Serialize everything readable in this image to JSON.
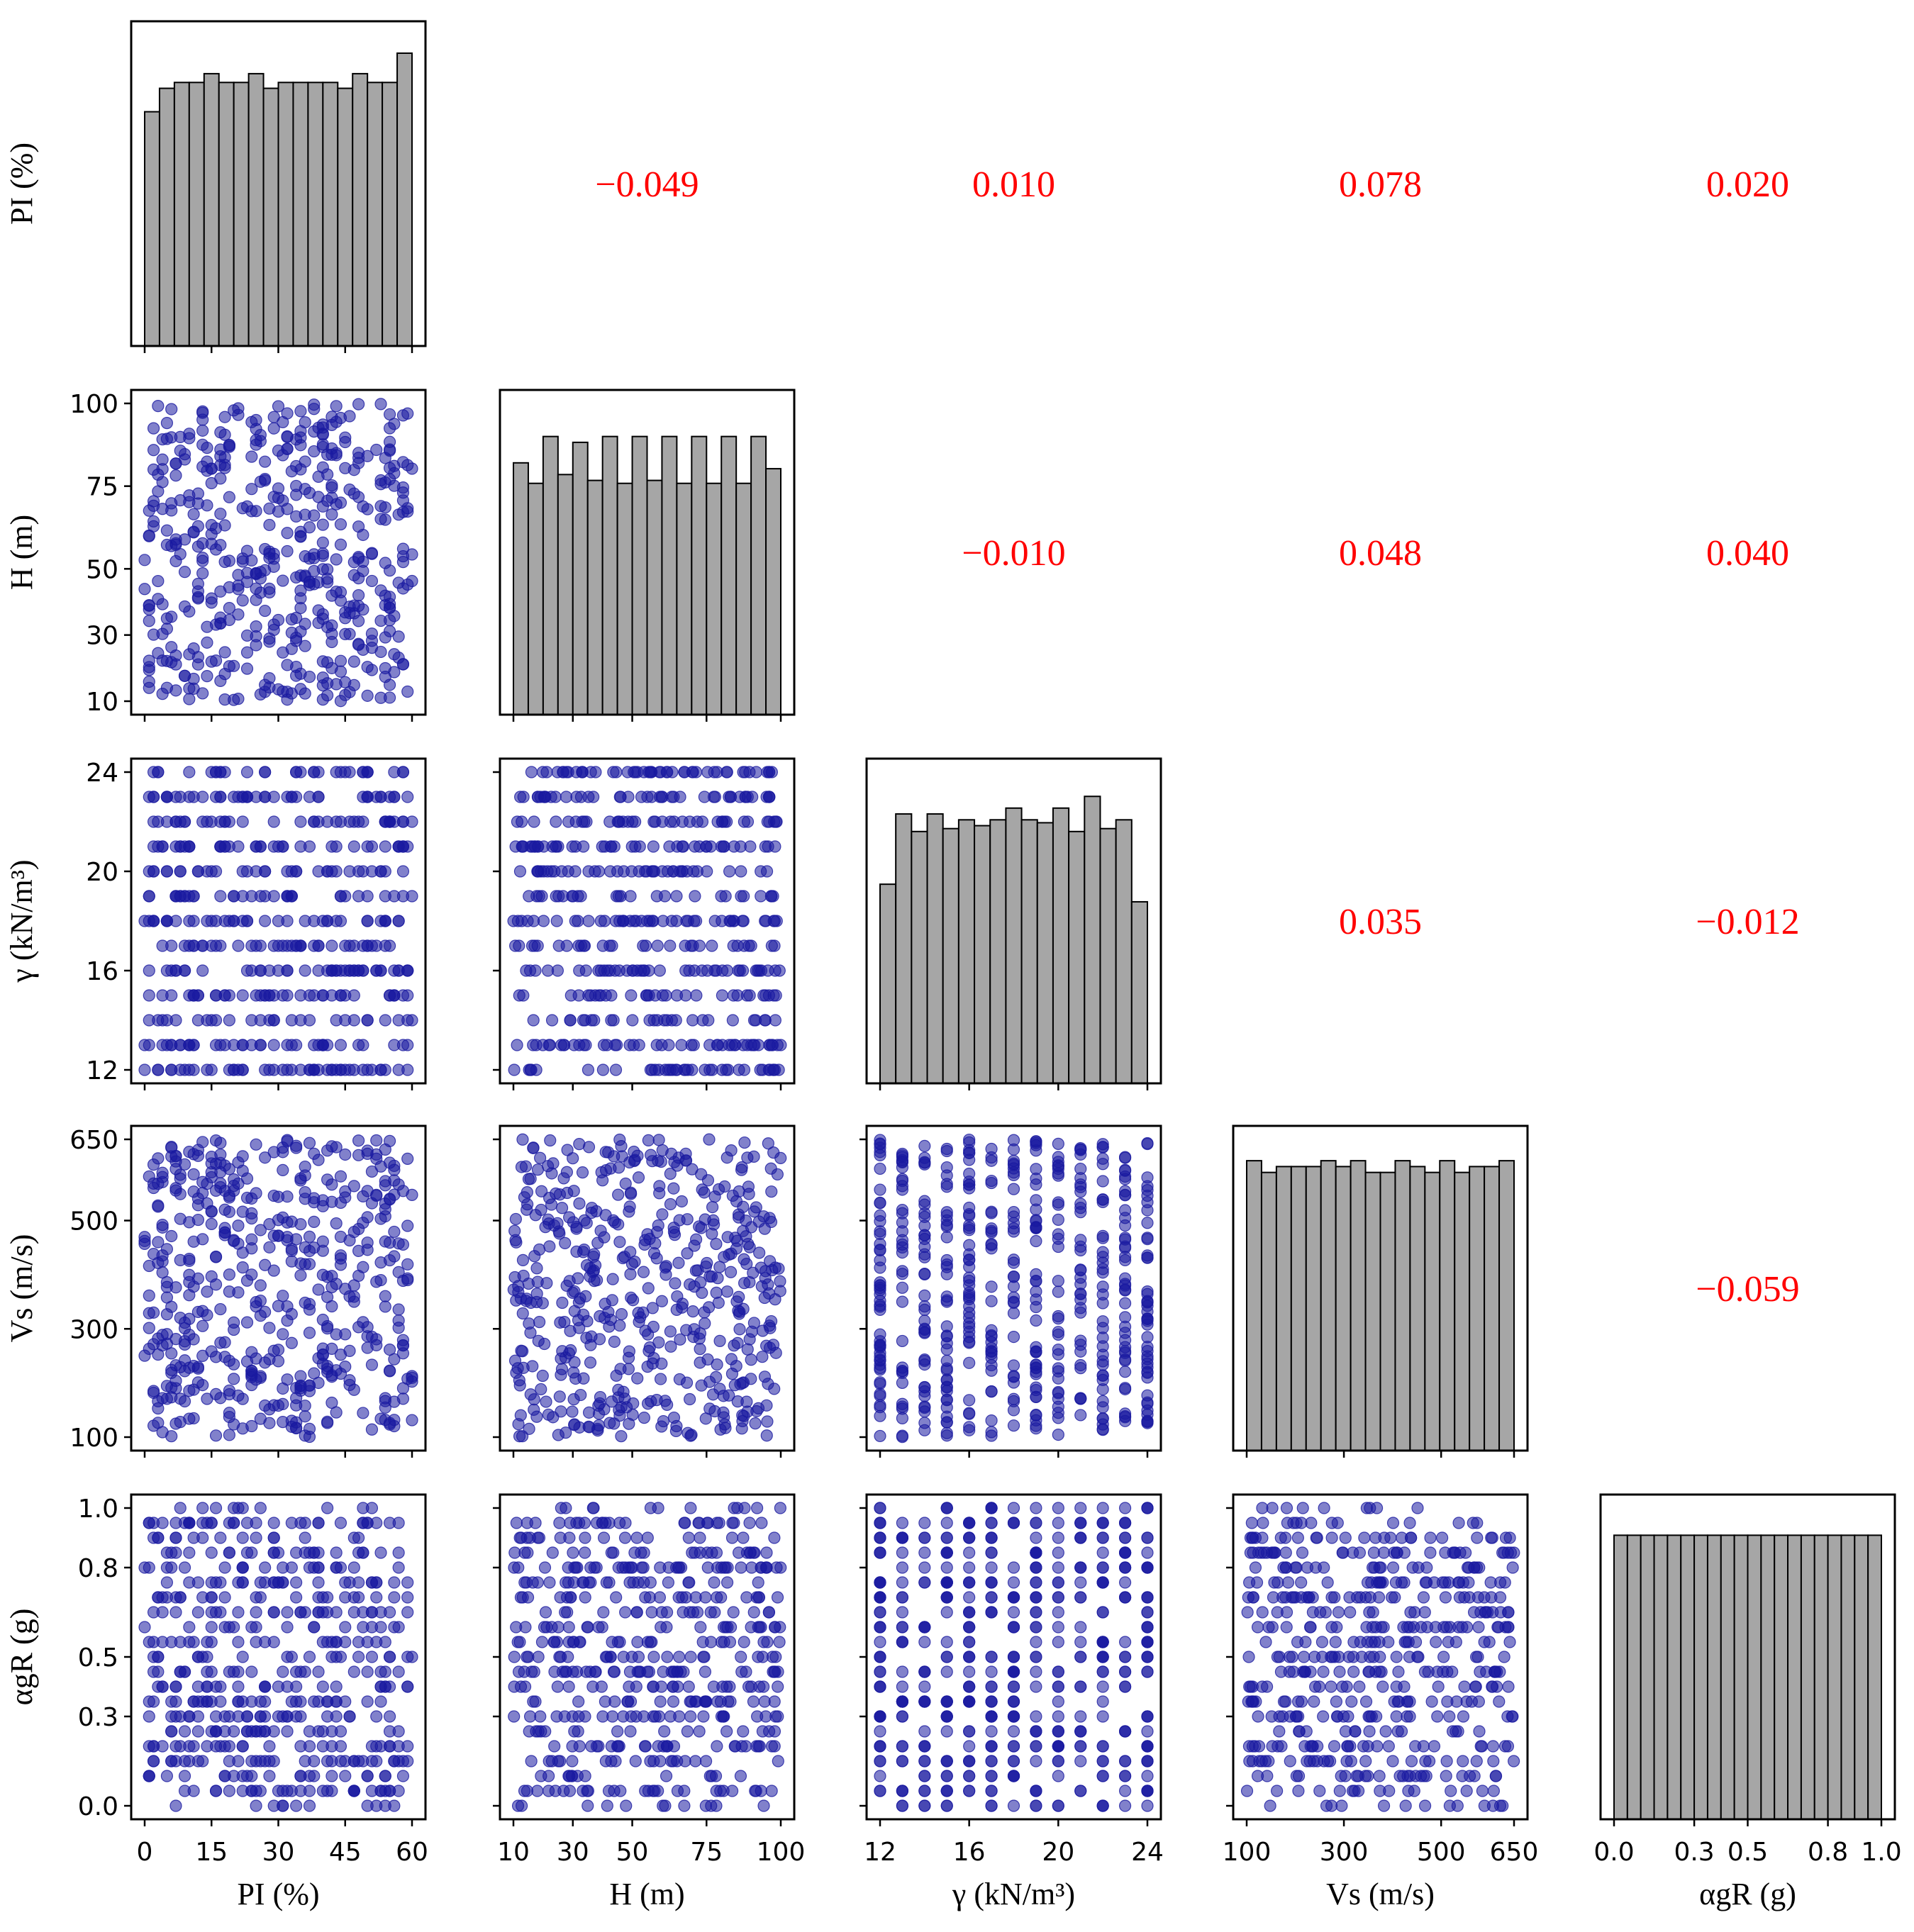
{
  "chart_data": {
    "type": "scatter-matrix",
    "variables": [
      {
        "key": "PI",
        "label": "PI (%)",
        "range": [
          0,
          60
        ],
        "ticks": [
          0,
          15,
          30,
          45,
          60
        ],
        "xticks": [
          "0",
          "15",
          "30",
          "45",
          "60"
        ],
        "yticks": [],
        "hist": [
          0.8,
          0.88,
          0.9,
          0.9,
          0.93,
          0.9,
          0.9,
          0.93,
          0.88,
          0.9,
          0.9,
          0.9,
          0.9,
          0.88,
          0.93,
          0.9,
          0.9,
          1.0
        ]
      },
      {
        "key": "H",
        "label": "H (m)",
        "range": [
          10,
          100
        ],
        "ticks": [
          10,
          30,
          50,
          75,
          100
        ],
        "xticks": [
          "10",
          "30",
          "50",
          "75",
          "100"
        ],
        "yticks": [
          "10",
          "30",
          "50",
          "75",
          "100"
        ],
        "hist": [
          0.86,
          0.79,
          0.95,
          0.82,
          0.93,
          0.8,
          0.95,
          0.79,
          0.95,
          0.8,
          0.95,
          0.79,
          0.95,
          0.79,
          0.95,
          0.79,
          0.95,
          0.84
        ]
      },
      {
        "key": "gamma",
        "label": "γ (kN/m³)",
        "range": [
          12,
          24
        ],
        "ticks": [
          12,
          16,
          20,
          24
        ],
        "xticks": [
          "12",
          "16",
          "20",
          "24"
        ],
        "yticks": [
          "12",
          "16",
          "20",
          "24"
        ],
        "hist": [
          0.68,
          0.92,
          0.86,
          0.92,
          0.87,
          0.9,
          0.88,
          0.9,
          0.94,
          0.9,
          0.89,
          0.94,
          0.86,
          0.98,
          0.87,
          0.9,
          0.62
        ]
      },
      {
        "key": "Vs",
        "label": "Vs (m/s)",
        "range": [
          100,
          650
        ],
        "ticks": [
          100,
          300,
          500,
          650
        ],
        "xticks": [
          "100",
          "300",
          "500",
          "650"
        ],
        "yticks": [
          "100",
          "300",
          "500",
          "650"
        ],
        "hist": [
          0.99,
          0.95,
          0.97,
          0.97,
          0.97,
          0.99,
          0.97,
          0.99,
          0.95,
          0.95,
          0.99,
          0.97,
          0.95,
          0.99,
          0.95,
          0.97,
          0.97,
          0.99
        ]
      },
      {
        "key": "agR",
        "label": "αgR (g)",
        "range": [
          0,
          1
        ],
        "ticks": [
          0,
          0.3,
          0.5,
          0.8,
          1.0
        ],
        "xticks": [
          "0.0",
          "0.3",
          "0.5",
          "0.8",
          "1.0"
        ],
        "yticks": [
          "0.0",
          "0.3",
          "0.5",
          "0.8",
          "1.0"
        ],
        "hist": [
          0.97,
          0.97,
          0.97,
          0.97,
          0.97,
          0.97,
          0.97,
          0.97,
          0.97,
          0.97,
          0.97,
          0.97,
          0.97,
          0.97,
          0.97,
          0.97,
          0.97,
          0.97,
          0.97,
          0.97
        ]
      }
    ],
    "correlations": [
      {
        "row": 0,
        "col": 1,
        "value": "−0.049"
      },
      {
        "row": 0,
        "col": 2,
        "value": "0.010"
      },
      {
        "row": 0,
        "col": 3,
        "value": "0.078"
      },
      {
        "row": 0,
        "col": 4,
        "value": "0.020"
      },
      {
        "row": 1,
        "col": 2,
        "value": "−0.010"
      },
      {
        "row": 1,
        "col": 3,
        "value": "0.048"
      },
      {
        "row": 1,
        "col": 4,
        "value": "0.040"
      },
      {
        "row": 2,
        "col": 3,
        "value": "0.035"
      },
      {
        "row": 2,
        "col": 4,
        "value": "−0.012"
      },
      {
        "row": 3,
        "col": 4,
        "value": "−0.059"
      }
    ],
    "scatter_points_per_panel": 500,
    "colors": {
      "scatter": "#1a1aa0",
      "hist_fill": "#a6a6a6",
      "corr_text": "#ff0000"
    }
  }
}
